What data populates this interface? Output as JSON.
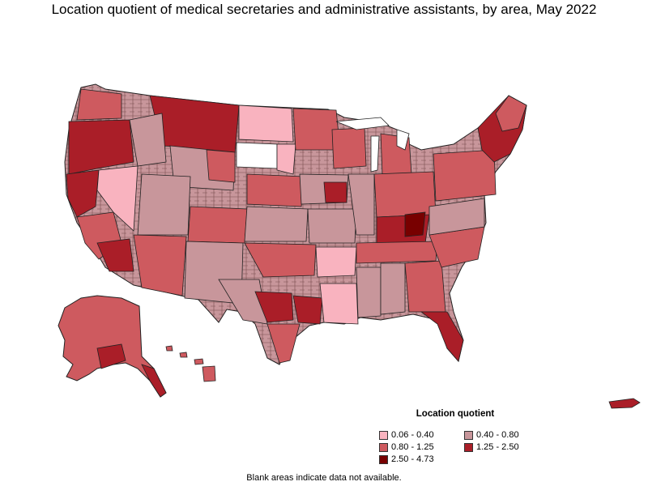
{
  "title": "Location quotient of medical secretaries and administrative assistants, by area, May 2022",
  "legend": {
    "title": "Location quotient",
    "items": [
      {
        "label": "0.06 - 0.40",
        "color": "#f9b3bf"
      },
      {
        "label": "0.40 - 0.80",
        "color": "#c8969b"
      },
      {
        "label": "0.80 - 1.25",
        "color": "#ce5a5f"
      },
      {
        "label": "1.25 - 2.50",
        "color": "#aa1e28"
      },
      {
        "label": "2.50 - 4.73",
        "color": "#780000"
      }
    ]
  },
  "footnote": "Blank areas indicate data not available.",
  "colors": {
    "border": "#222222",
    "no_data": "#ffffff"
  }
}
